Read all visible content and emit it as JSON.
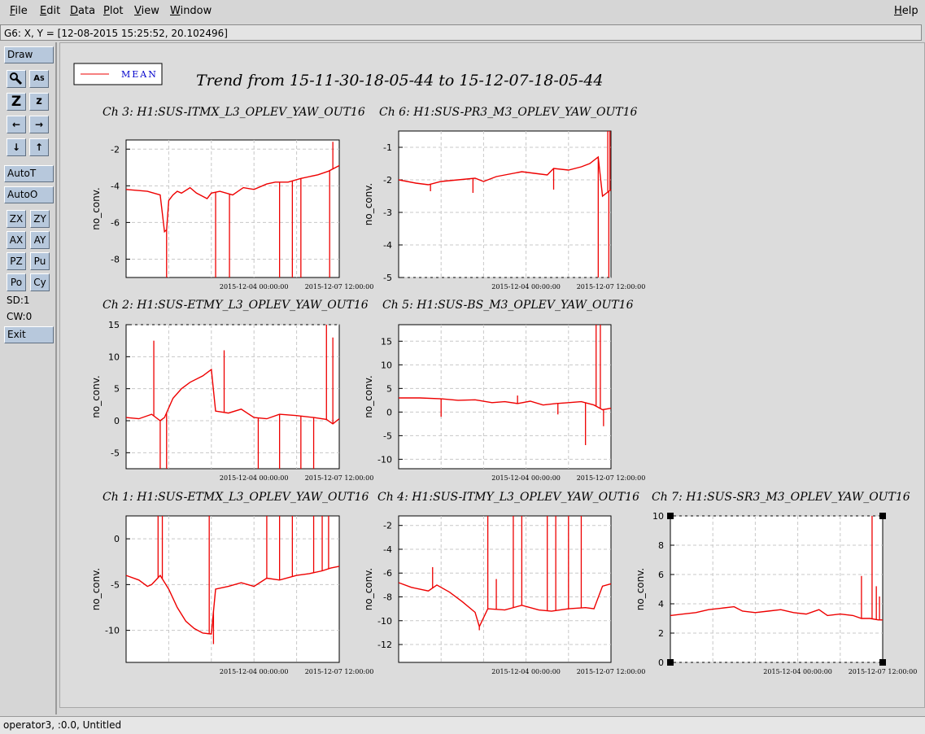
{
  "menu": {
    "file": "File",
    "edit": "Edit",
    "data": "Data",
    "plot": "Plot",
    "view": "View",
    "window": "Window",
    "help": "Help"
  },
  "coord_readout": "G6: X, Y = [12-08-2015 15:25:52, 20.102496]",
  "toolbar": {
    "draw": "Draw",
    "autot": "AutoT",
    "autoo": "AutoO",
    "zx": "ZX",
    "zy": "ZY",
    "ax": "AX",
    "ay": "AY",
    "pz": "PZ",
    "pu": "Pu",
    "po": "Po",
    "cy": "Cy",
    "sd": "SD:1",
    "cw": "CW:0",
    "exit": "Exit"
  },
  "tool_icons": [
    "magnifier-icon",
    "text-tool-icon",
    "zoom-large-icon",
    "zoom-small-icon",
    "arrow-left-icon",
    "arrow-right-icon",
    "arrow-down-icon",
    "arrow-up-icon"
  ],
  "status": "operator3, :0.0, Untitled",
  "colors": {
    "series": "#ee0000",
    "legend_text": "#0000cc",
    "button": "#b7c8dc"
  },
  "chart_data": {
    "title": "Trend from 15-11-30-18-05-44 to 15-12-07-18-05-44",
    "legend": {
      "label": "MEAN",
      "placement": "top-left"
    },
    "x_tick_labels": [
      "2015-12-04 00:00:00",
      "2015-12-07 12:00:00"
    ],
    "charts": [
      {
        "id": "ch3",
        "type": "line",
        "title": "Ch 3: H1:SUS-ITMX_L3_OPLEV_YAW_OUT16",
        "ylabel": "no_conv.",
        "ylim": [
          -9,
          -1.5
        ],
        "yticks": [
          -2,
          -4,
          -6,
          -8
        ],
        "grid": true,
        "series": [
          {
            "name": "MEAN",
            "x": [
              0,
              0.1,
              0.16,
              0.18,
              0.19,
              0.2,
              0.22,
              0.24,
              0.26,
              0.3,
              0.33,
              0.38,
              0.4,
              0.44,
              0.5,
              0.55,
              0.6,
              0.66,
              0.7,
              0.76,
              0.82,
              0.9,
              0.95,
              1.0
            ],
            "y": [
              -4.2,
              -4.3,
              -4.5,
              -6.5,
              -6.4,
              -4.8,
              -4.5,
              -4.3,
              -4.4,
              -4.1,
              -4.4,
              -4.7,
              -4.4,
              -4.3,
              -4.5,
              -4.1,
              -4.2,
              -3.9,
              -3.8,
              -3.8,
              -3.6,
              -3.4,
              -3.2,
              -2.9
            ]
          }
        ],
        "spikes": [
          {
            "x": 0.19,
            "y": -9
          },
          {
            "x": 0.42,
            "y": -9
          },
          {
            "x": 0.485,
            "y": -9
          },
          {
            "x": 0.72,
            "y": -9
          },
          {
            "x": 0.78,
            "y": -9
          },
          {
            "x": 0.82,
            "y": -9
          },
          {
            "x": 0.97,
            "y": -1.6
          },
          {
            "x": 0.955,
            "y": -9
          }
        ]
      },
      {
        "id": "ch6",
        "type": "line",
        "title": "Ch 6: H1:SUS-PR3_M3_OPLEV_YAW_OUT16",
        "ylabel": "no_conv.",
        "ylim": [
          -5,
          -0.5
        ],
        "yticks": [
          -1,
          -2,
          -3,
          -4,
          -5
        ],
        "grid": true,
        "series": [
          {
            "name": "MEAN",
            "x": [
              0,
              0.08,
              0.14,
              0.2,
              0.28,
              0.36,
              0.4,
              0.46,
              0.5,
              0.58,
              0.64,
              0.7,
              0.73,
              0.8,
              0.86,
              0.9,
              0.94,
              0.96,
              1.0
            ],
            "y": [
              -2.0,
              -2.1,
              -2.15,
              -2.05,
              -2.0,
              -1.95,
              -2.05,
              -1.9,
              -1.85,
              -1.75,
              -1.8,
              -1.85,
              -1.65,
              -1.7,
              -1.6,
              -1.5,
              -1.3,
              -2.5,
              -2.3
            ]
          }
        ],
        "spikes": [
          {
            "x": 0.15,
            "y": -2.35
          },
          {
            "x": 0.35,
            "y": -2.4
          },
          {
            "x": 0.73,
            "y": -2.3
          },
          {
            "x": 0.94,
            "y": -5
          },
          {
            "x": 0.985,
            "y": -0.5
          },
          {
            "x": 0.99,
            "y": -5
          },
          {
            "x": 0.995,
            "y": -0.5
          }
        ]
      },
      {
        "id": "ch2",
        "type": "line",
        "title": "Ch 2: H1:SUS-ETMY_L3_OPLEV_YAW_OUT16",
        "ylabel": "no_conv.",
        "ylim": [
          -7.5,
          15
        ],
        "yticks": [
          15,
          10,
          5,
          0,
          -5
        ],
        "grid": true,
        "series": [
          {
            "name": "MEAN",
            "x": [
              0,
              0.06,
              0.12,
              0.16,
              0.18,
              0.22,
              0.26,
              0.3,
              0.36,
              0.4,
              0.42,
              0.48,
              0.54,
              0.6,
              0.66,
              0.72,
              0.8,
              0.88,
              0.94,
              0.97,
              1.0
            ],
            "y": [
              0.5,
              0.3,
              1.0,
              0.0,
              0.5,
              3.5,
              5.0,
              6.0,
              7.0,
              8.0,
              1.5,
              1.2,
              1.8,
              0.5,
              0.3,
              1.0,
              0.8,
              0.5,
              0.2,
              -0.5,
              0.3
            ]
          }
        ],
        "spikes": [
          {
            "x": 0.13,
            "y": 12.5
          },
          {
            "x": 0.16,
            "y": -7.5
          },
          {
            "x": 0.19,
            "y": -7.5
          },
          {
            "x": 0.46,
            "y": 11.0
          },
          {
            "x": 0.62,
            "y": -7.5
          },
          {
            "x": 0.72,
            "y": -7.5
          },
          {
            "x": 0.82,
            "y": -7.5
          },
          {
            "x": 0.88,
            "y": -7.5
          },
          {
            "x": 0.94,
            "y": 15
          },
          {
            "x": 0.97,
            "y": 13.0
          }
        ]
      },
      {
        "id": "ch5",
        "type": "line",
        "title": "Ch 5: H1:SUS-BS_M3_OPLEV_YAW_OUT16",
        "ylabel": "no_conv.",
        "ylim": [
          -12,
          18.5
        ],
        "yticks": [
          15,
          10,
          5,
          0,
          -5,
          -10
        ],
        "grid": true,
        "series": [
          {
            "name": "MEAN",
            "x": [
              0,
              0.1,
              0.2,
              0.28,
              0.36,
              0.44,
              0.5,
              0.56,
              0.62,
              0.68,
              0.74,
              0.8,
              0.86,
              0.92,
              0.96,
              1.0
            ],
            "y": [
              3.0,
              3.0,
              2.8,
              2.5,
              2.6,
              2.0,
              2.2,
              1.8,
              2.3,
              1.5,
              1.8,
              2.0,
              2.2,
              1.5,
              0.5,
              0.8
            ]
          }
        ],
        "spikes": [
          {
            "x": 0.2,
            "y": -1.0
          },
          {
            "x": 0.56,
            "y": 3.5
          },
          {
            "x": 0.75,
            "y": -0.5
          },
          {
            "x": 0.88,
            "y": -7.0
          },
          {
            "x": 0.93,
            "y": 18.5
          },
          {
            "x": 0.95,
            "y": 18.5
          },
          {
            "x": 0.965,
            "y": -3.0
          }
        ]
      },
      {
        "id": "ch1",
        "type": "line",
        "title": "Ch 1: H1:SUS-ETMX_L3_OPLEV_YAW_OUT16",
        "ylabel": "no_conv.",
        "ylim": [
          -13.5,
          2.5
        ],
        "yticks": [
          0,
          -5,
          -10
        ],
        "grid": true,
        "series": [
          {
            "name": "MEAN",
            "x": [
              0,
              0.06,
              0.1,
              0.12,
              0.16,
              0.2,
              0.24,
              0.28,
              0.32,
              0.36,
              0.4,
              0.42,
              0.48,
              0.54,
              0.6,
              0.66,
              0.72,
              0.8,
              0.86,
              0.92,
              0.96,
              1.0
            ],
            "y": [
              -4.0,
              -4.5,
              -5.2,
              -5.0,
              -4.0,
              -5.5,
              -7.5,
              -9.0,
              -9.8,
              -10.3,
              -10.4,
              -5.5,
              -5.2,
              -4.8,
              -5.2,
              -4.3,
              -4.5,
              -4.0,
              -3.8,
              -3.5,
              -3.2,
              -3.0
            ]
          }
        ],
        "spikes": [
          {
            "x": 0.15,
            "y": 2.5
          },
          {
            "x": 0.17,
            "y": 2.5
          },
          {
            "x": 0.39,
            "y": 2.5
          },
          {
            "x": 0.41,
            "y": -11.5
          },
          {
            "x": 0.66,
            "y": 2.5
          },
          {
            "x": 0.72,
            "y": 2.5
          },
          {
            "x": 0.78,
            "y": 2.5
          },
          {
            "x": 0.88,
            "y": 2.5
          },
          {
            "x": 0.92,
            "y": 2.5
          },
          {
            "x": 0.95,
            "y": 2.5
          }
        ]
      },
      {
        "id": "ch4",
        "type": "line",
        "title": "Ch 4: H1:SUS-ITMY_L3_OPLEV_YAW_OUT16",
        "ylabel": "no_conv.",
        "ylim": [
          -13.5,
          -1.2
        ],
        "yticks": [
          -2,
          -4,
          -6,
          -8,
          -10,
          -12
        ],
        "grid": true,
        "series": [
          {
            "name": "MEAN",
            "x": [
              0,
              0.06,
              0.14,
              0.18,
              0.24,
              0.3,
              0.36,
              0.38,
              0.42,
              0.5,
              0.58,
              0.66,
              0.72,
              0.8,
              0.88,
              0.92,
              0.96,
              1.0
            ],
            "y": [
              -6.8,
              -7.2,
              -7.5,
              -7.0,
              -7.6,
              -8.4,
              -9.3,
              -10.5,
              -9.0,
              -9.1,
              -8.7,
              -9.1,
              -9.2,
              -9.0,
              -8.9,
              -9.0,
              -7.1,
              -6.9
            ]
          }
        ],
        "spikes": [
          {
            "x": 0.16,
            "y": -5.5
          },
          {
            "x": 0.38,
            "y": -10.8
          },
          {
            "x": 0.42,
            "y": -1.2
          },
          {
            "x": 0.46,
            "y": -6.5
          },
          {
            "x": 0.54,
            "y": -1.2
          },
          {
            "x": 0.58,
            "y": -1.2
          },
          {
            "x": 0.7,
            "y": -1.2
          },
          {
            "x": 0.74,
            "y": -1.2
          },
          {
            "x": 0.8,
            "y": -1.2
          },
          {
            "x": 0.86,
            "y": -1.2
          }
        ]
      },
      {
        "id": "ch7",
        "type": "line",
        "title": "Ch 7: H1:SUS-SR3_M3_OPLEV_YAW_OUT16",
        "ylabel": "no_conv.",
        "ylim": [
          0,
          10
        ],
        "yticks": [
          10,
          8,
          6,
          4,
          2,
          0
        ],
        "grid": true,
        "series": [
          {
            "name": "MEAN",
            "x": [
              0,
              0.06,
              0.12,
              0.18,
              0.24,
              0.3,
              0.34,
              0.4,
              0.46,
              0.52,
              0.58,
              0.64,
              0.7,
              0.74,
              0.8,
              0.86,
              0.9,
              0.94,
              0.98,
              1.0
            ],
            "y": [
              3.2,
              3.3,
              3.4,
              3.6,
              3.7,
              3.8,
              3.5,
              3.4,
              3.5,
              3.6,
              3.4,
              3.3,
              3.6,
              3.2,
              3.3,
              3.2,
              3.0,
              3.0,
              2.9,
              2.9
            ]
          }
        ],
        "spikes": [
          {
            "x": 0.9,
            "y": 5.9
          },
          {
            "x": 0.95,
            "y": 10.0
          },
          {
            "x": 0.97,
            "y": 5.2
          },
          {
            "x": 0.985,
            "y": 4.5
          }
        ]
      }
    ]
  }
}
